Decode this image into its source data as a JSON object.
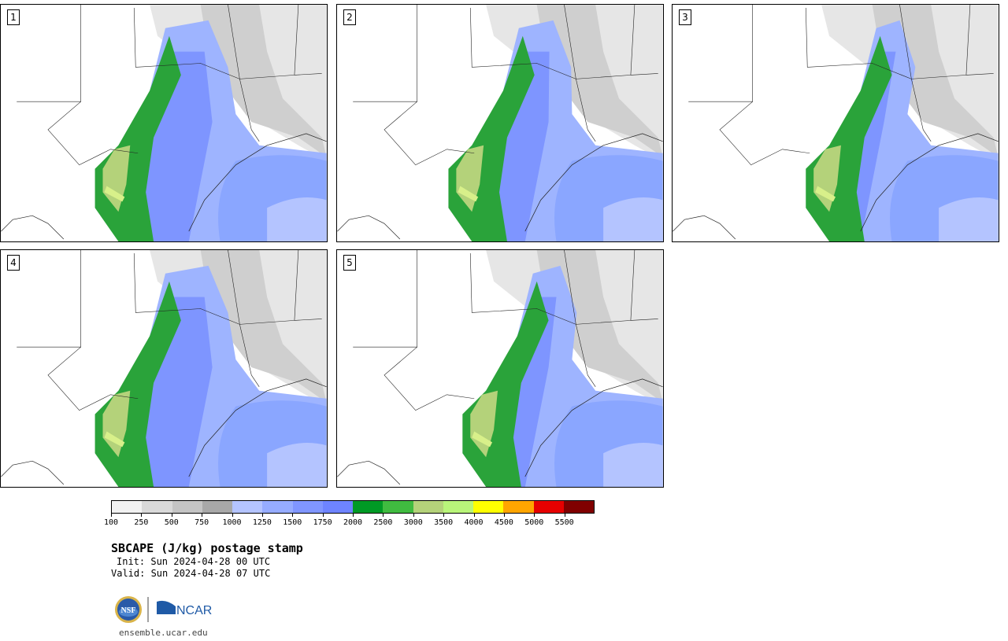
{
  "panels": [
    {
      "number": "1"
    },
    {
      "number": "2"
    },
    {
      "number": "3"
    },
    {
      "number": "4"
    },
    {
      "number": "5"
    }
  ],
  "colorbar": {
    "colors": [
      "#f2f2f2",
      "#d9d9d9",
      "#c4c4c4",
      "#a8a8a8",
      "#b4c4ff",
      "#96acff",
      "#8096ff",
      "#6e84ff",
      "#009a25",
      "#40bb40",
      "#b4d27a",
      "#b9f57a",
      "#ffff00",
      "#ffa500",
      "#e60000",
      "#800000"
    ],
    "labels": [
      "100",
      "250",
      "500",
      "750",
      "1000",
      "1250",
      "1500",
      "1750",
      "2000",
      "2500",
      "3000",
      "3500",
      "4000",
      "4500",
      "5000",
      "5500"
    ]
  },
  "title": "SBCAPE (J/kg) postage stamp",
  "init": "Init: Sun 2024-04-28 00 UTC",
  "valid": "Valid: Sun 2024-04-28 07 UTC",
  "footer": {
    "logo_nsf": "NSF",
    "logo_ncar": "NCAR",
    "site": "ensemble.ucar.edu"
  }
}
